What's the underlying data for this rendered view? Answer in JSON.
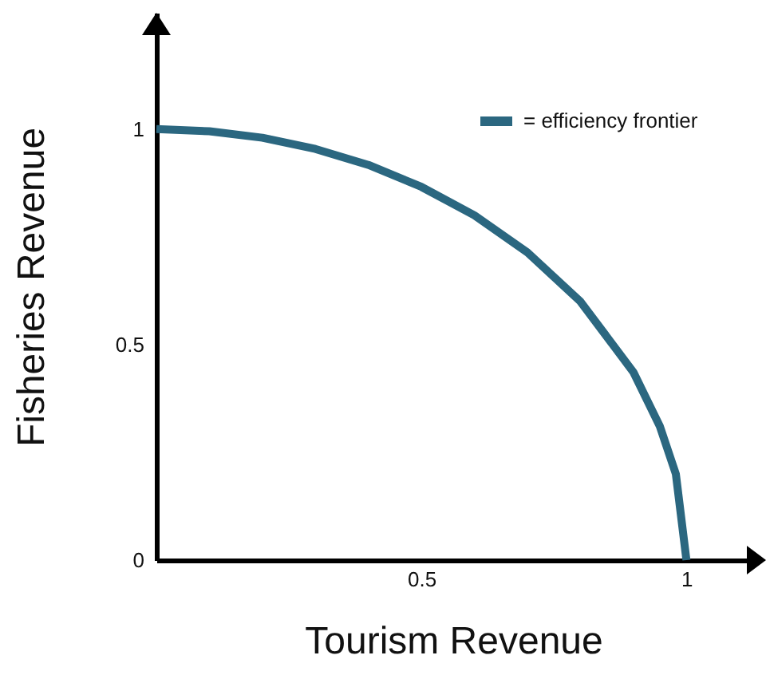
{
  "chart_data": {
    "type": "line",
    "xlabel": "Tourism Revenue",
    "ylabel": "Fisheries Revenue",
    "x": [
      0,
      0.1,
      0.2,
      0.3,
      0.4,
      0.5,
      0.6,
      0.7,
      0.8,
      0.9,
      0.95,
      0.98,
      1
    ],
    "series": [
      {
        "name": "= efficiency frontier",
        "color": "#2b6780",
        "values": [
          1,
          0.995,
          0.98,
          0.954,
          0.917,
          0.866,
          0.8,
          0.714,
          0.6,
          0.436,
          0.31,
          0.2,
          0
        ]
      }
    ],
    "xlim": [
      0,
      1.12
    ],
    "ylim": [
      0,
      1.27
    ],
    "xticks": [
      0.5,
      1
    ],
    "yticks": [
      0,
      0.5,
      1
    ],
    "grid": false,
    "legend": "top right",
    "marker": "none",
    "line_style": "solid"
  }
}
